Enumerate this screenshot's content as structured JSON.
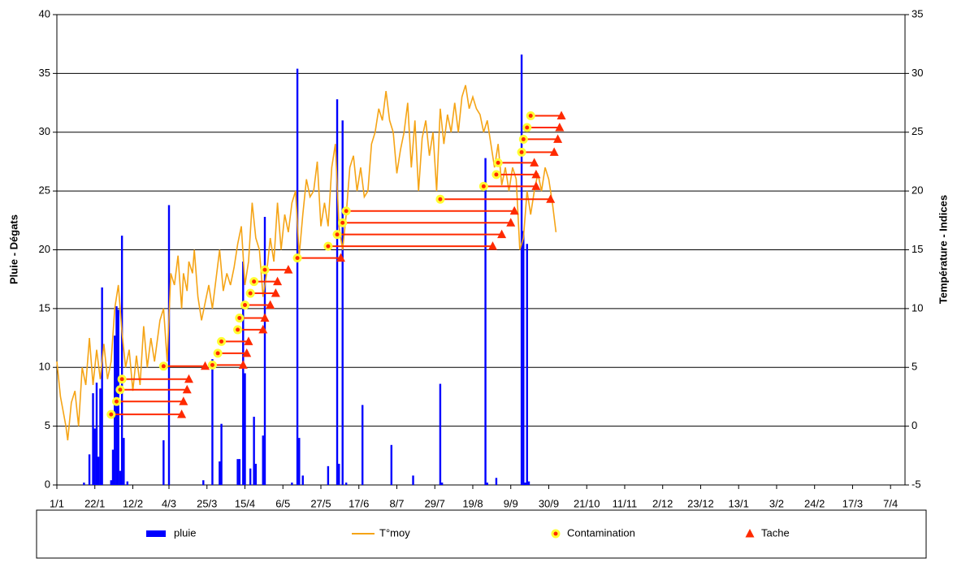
{
  "chart_data": {
    "type": "combo",
    "y_label": "Pluie - Dégats",
    "y2_label": "Température - Indices",
    "xlim": [
      0,
      469
    ],
    "ylim": [
      0,
      40
    ],
    "y2lim": [
      -5,
      35
    ],
    "grid": true,
    "xticks": [
      {
        "value": 0,
        "label": "1/1"
      },
      {
        "value": 21,
        "label": "22/1"
      },
      {
        "value": 42,
        "label": "12/2"
      },
      {
        "value": 62,
        "label": "4/3"
      },
      {
        "value": 83,
        "label": "25/3"
      },
      {
        "value": 104,
        "label": "15/4"
      },
      {
        "value": 125,
        "label": "6/5"
      },
      {
        "value": 146,
        "label": "27/5"
      },
      {
        "value": 167,
        "label": "17/6"
      },
      {
        "value": 188,
        "label": "8/7"
      },
      {
        "value": 209,
        "label": "29/7"
      },
      {
        "value": 230,
        "label": "19/8"
      },
      {
        "value": 251,
        "label": "9/9"
      },
      {
        "value": 272,
        "label": "30/9"
      },
      {
        "value": 293,
        "label": "21/10"
      },
      {
        "value": 314,
        "label": "11/11"
      },
      {
        "value": 335,
        "label": "2/12"
      },
      {
        "value": 356,
        "label": "23/12"
      },
      {
        "value": 377,
        "label": "13/1"
      },
      {
        "value": 398,
        "label": "3/2"
      },
      {
        "value": 419,
        "label": "24/2"
      },
      {
        "value": 440,
        "label": "17/3"
      },
      {
        "value": 461,
        "label": "7/4"
      }
    ],
    "yticks": [
      0,
      5,
      10,
      15,
      20,
      25,
      30,
      35,
      40
    ],
    "y2ticks": [
      -5,
      0,
      5,
      10,
      15,
      20,
      25,
      30,
      35
    ],
    "series": [
      {
        "name": "pluie",
        "type": "bar",
        "color": "#0000ff",
        "x": [
          15,
          18,
          20,
          21,
          22,
          23,
          24,
          25,
          30,
          31,
          32,
          33,
          34,
          35,
          36,
          37,
          39,
          59,
          62,
          81,
          86,
          90,
          91,
          100,
          101,
          103,
          104,
          107,
          109,
          110,
          114,
          115,
          130,
          133,
          134,
          136,
          150,
          155,
          156,
          158,
          160,
          169,
          185,
          197,
          212,
          213,
          237,
          238,
          243,
          257,
          258,
          259,
          260,
          261
        ],
        "values": [
          0.2,
          2.6,
          7.8,
          4.8,
          8.7,
          2.4,
          8.2,
          16.8,
          0.4,
          3.0,
          12.7,
          15.2,
          14.9,
          1.2,
          21.2,
          4.0,
          0.3,
          3.8,
          23.8,
          0.4,
          10.7,
          2.0,
          5.2,
          2.2,
          2.2,
          19.0,
          9.5,
          1.4,
          5.8,
          1.8,
          4.2,
          22.8,
          0.2,
          35.4,
          4.0,
          0.8,
          1.6,
          32.8,
          1.8,
          31.0,
          0.2,
          6.8,
          3.4,
          0.8,
          8.6,
          0.2,
          27.8,
          0.2,
          0.6,
          36.6,
          21.6,
          0.2,
          20.5,
          0.3
        ]
      },
      {
        "name": "T°moy",
        "type": "line",
        "axis": "y2",
        "color": "#f5a416",
        "x": [
          0,
          2,
          5,
          6,
          8,
          10,
          12,
          14,
          16,
          18,
          20,
          22,
          24,
          26,
          28,
          30,
          32,
          34,
          36,
          38,
          40,
          42,
          44,
          46,
          48,
          50,
          52,
          54,
          57,
          59,
          61,
          63,
          65,
          67,
          69,
          70,
          72,
          73,
          75,
          76,
          78,
          80,
          82,
          84,
          86,
          88,
          90,
          92,
          94,
          96,
          98,
          100,
          102,
          104,
          106,
          108,
          110,
          112,
          114,
          116,
          118,
          120,
          122,
          124,
          126,
          128,
          130,
          132,
          134,
          136,
          138,
          140,
          142,
          144,
          146,
          148,
          150,
          152,
          154,
          156,
          158,
          160,
          162,
          164,
          166,
          168,
          170,
          172,
          174,
          176,
          178,
          180,
          182,
          184,
          186,
          188,
          190,
          192,
          194,
          196,
          198,
          200,
          202,
          204,
          206,
          208,
          210,
          212,
          214,
          216,
          218,
          220,
          222,
          224,
          226,
          228,
          230,
          232,
          234,
          236,
          238,
          240,
          242,
          244,
          246,
          248,
          250,
          252,
          254,
          256,
          258,
          260,
          262,
          264,
          266,
          268,
          270,
          272,
          274,
          276
        ],
        "values": [
          5.5,
          2.5,
          0,
          -1.2,
          2,
          3,
          0,
          5,
          3.5,
          7.5,
          3.5,
          6.5,
          4,
          7,
          4,
          5.5,
          10,
          12,
          8,
          5,
          6.5,
          3,
          6,
          3.5,
          8.5,
          5,
          7.5,
          5.5,
          9,
          10,
          5.5,
          13,
          12,
          14.5,
          10,
          13,
          11.5,
          14,
          13,
          15,
          11,
          9,
          10.5,
          12,
          10,
          12.5,
          15,
          11.5,
          13,
          12,
          13.5,
          15.5,
          17,
          12,
          14,
          19,
          16,
          15,
          11,
          13,
          16,
          14,
          19,
          15,
          18,
          16.5,
          19,
          20,
          14.5,
          18,
          21,
          19.5,
          20,
          22.5,
          17,
          19,
          17,
          22,
          24,
          17,
          15,
          18,
          22,
          23,
          20,
          22,
          19.5,
          20,
          24,
          25,
          27,
          26,
          28.5,
          26,
          25,
          21.5,
          23.5,
          25,
          27.5,
          22,
          26,
          20,
          24.5,
          26,
          23,
          25,
          20,
          27,
          24,
          26.5,
          25,
          27.5,
          25,
          28,
          29,
          27,
          28,
          27,
          26.5,
          25,
          26,
          24,
          22,
          24,
          20.5,
          22,
          20,
          22,
          21,
          15,
          16,
          20,
          18,
          20,
          21.5,
          20,
          22,
          21,
          19,
          16.5
        ]
      },
      {
        "name": "Contamination",
        "type": "scatter",
        "axis": "y2",
        "color": "#ff2a00",
        "x": [
          30,
          33,
          35,
          36,
          59,
          86,
          89,
          91,
          100,
          101,
          104,
          107,
          109,
          115,
          133,
          150,
          155,
          158,
          160,
          212,
          236,
          243,
          244,
          257,
          258,
          260,
          262
        ],
        "values": [
          1.0,
          2.1,
          3.1,
          4.0,
          5.1,
          5.2,
          6.2,
          7.2,
          8.2,
          9.2,
          10.3,
          11.3,
          12.3,
          13.3,
          14.3,
          15.3,
          16.3,
          17.3,
          18.3,
          19.3,
          20.4,
          21.4,
          22.4,
          23.3,
          24.4,
          25.4,
          26.4
        ]
      },
      {
        "name": "Tache",
        "type": "scatter",
        "axis": "y2",
        "color": "#ff2a00",
        "x": [
          69,
          70,
          72,
          73,
          82,
          103,
          105,
          106,
          114,
          115,
          118,
          121,
          122,
          128,
          157,
          241,
          246,
          251,
          253,
          273,
          265,
          265,
          264,
          275,
          277,
          278,
          279
        ],
        "values": [
          1.0,
          2.1,
          3.1,
          4.0,
          5.1,
          5.2,
          6.2,
          7.2,
          8.2,
          9.2,
          10.3,
          11.3,
          12.3,
          13.3,
          14.3,
          15.3,
          16.3,
          17.3,
          18.3,
          19.3,
          20.4,
          21.4,
          22.4,
          23.3,
          24.4,
          25.4,
          26.4
        ]
      }
    ]
  }
}
